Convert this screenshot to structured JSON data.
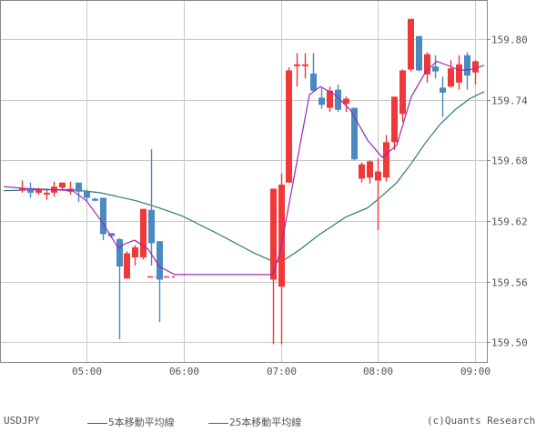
{
  "chart_data": {
    "type": "candlestick",
    "symbol": "USDJPY",
    "interval_minutes": 5,
    "title": "",
    "xlabel": "",
    "ylabel": "",
    "ylim": [
      159.46,
      159.84
    ],
    "y_ticks": [
      "159.80",
      "159.74",
      "159.68",
      "159.62",
      "159.56",
      "159.50"
    ],
    "x_ticks": [
      "05:00",
      "06:00",
      "07:00",
      "08:00",
      "09:00"
    ],
    "grid": true,
    "legend_position": "bottom",
    "colors": {
      "up": "#f03838",
      "down": "#4a8ac0",
      "ma5": "#9a28b8",
      "ma25": "#2a7a78",
      "grid": "#c8c8c8",
      "axis": "#888888",
      "text": "#555555"
    },
    "candles": [
      {
        "t": "04:20",
        "o": 159.65,
        "h": 159.66,
        "l": 159.648,
        "c": 159.652
      },
      {
        "t": "04:25",
        "o": 159.652,
        "h": 159.658,
        "l": 159.643,
        "c": 159.648
      },
      {
        "t": "04:30",
        "o": 159.648,
        "h": 159.653,
        "l": 159.646,
        "c": 159.651
      },
      {
        "t": "04:35",
        "o": 159.647,
        "h": 159.652,
        "l": 159.641,
        "c": 159.648
      },
      {
        "t": "04:40",
        "o": 159.648,
        "h": 159.659,
        "l": 159.644,
        "c": 159.654
      },
      {
        "t": "04:45",
        "o": 159.653,
        "h": 159.658,
        "l": 159.65,
        "c": 159.658
      },
      {
        "t": "04:50",
        "o": 159.649,
        "h": 159.659,
        "l": 159.646,
        "c": 159.652
      },
      {
        "t": "04:55",
        "o": 159.658,
        "h": 159.658,
        "l": 159.639,
        "c": 159.649
      },
      {
        "t": "05:00",
        "o": 159.649,
        "h": 159.651,
        "l": 159.64,
        "c": 159.643
      },
      {
        "t": "05:05",
        "o": 159.642,
        "h": 159.643,
        "l": 159.64,
        "c": 159.64
      },
      {
        "t": "05:10",
        "o": 159.643,
        "h": 159.643,
        "l": 159.601,
        "c": 159.607
      },
      {
        "t": "05:15",
        "o": 159.608,
        "h": 159.608,
        "l": 159.604,
        "c": 159.605
      },
      {
        "t": "05:20",
        "o": 159.602,
        "h": 159.603,
        "l": 159.503,
        "c": 159.575
      },
      {
        "t": "05:25",
        "o": 159.563,
        "h": 159.59,
        "l": 159.563,
        "c": 159.588
      },
      {
        "t": "05:30",
        "o": 159.584,
        "h": 159.596,
        "l": 159.576,
        "c": 159.594
      },
      {
        "t": "05:35",
        "o": 159.584,
        "h": 159.632,
        "l": 159.582,
        "c": 159.632
      },
      {
        "t": "05:40",
        "o": 159.631,
        "h": 159.691,
        "l": 159.576,
        "c": 159.598
      },
      {
        "t": "05:45",
        "o": 159.6,
        "h": 159.6,
        "l": 159.52,
        "c": 159.562
      },
      {
        "t": "06:55",
        "o": 159.562,
        "h": 159.6,
        "l": 159.498,
        "c": 159.652
      },
      {
        "t": "07:00",
        "o": 159.555,
        "h": 159.667,
        "l": 159.498,
        "c": 159.656
      },
      {
        "t": "07:05",
        "o": 159.658,
        "h": 159.772,
        "l": 159.658,
        "c": 159.769
      },
      {
        "t": "07:10",
        "o": 159.775,
        "h": 159.786,
        "l": 159.753,
        "c": 159.775
      },
      {
        "t": "07:15",
        "o": 159.775,
        "h": 159.786,
        "l": 159.761,
        "c": 159.775
      },
      {
        "t": "07:20",
        "o": 159.766,
        "h": 159.786,
        "l": 159.748,
        "c": 159.749
      },
      {
        "t": "07:25",
        "o": 159.742,
        "h": 159.752,
        "l": 159.731,
        "c": 159.735
      },
      {
        "t": "07:30",
        "o": 159.732,
        "h": 159.753,
        "l": 159.728,
        "c": 159.749
      },
      {
        "t": "07:35",
        "o": 159.75,
        "h": 159.755,
        "l": 159.728,
        "c": 159.73
      },
      {
        "t": "07:40",
        "o": 159.736,
        "h": 159.743,
        "l": 159.728,
        "c": 159.741
      },
      {
        "t": "07:45",
        "o": 159.732,
        "h": 159.732,
        "l": 159.68,
        "c": 159.681
      },
      {
        "t": "07:50",
        "o": 159.662,
        "h": 159.678,
        "l": 159.658,
        "c": 159.676
      },
      {
        "t": "07:55",
        "o": 159.663,
        "h": 159.68,
        "l": 159.657,
        "c": 159.679
      },
      {
        "t": "08:00",
        "o": 159.66,
        "h": 159.682,
        "l": 159.611,
        "c": 159.669
      },
      {
        "t": "08:05",
        "o": 159.663,
        "h": 159.705,
        "l": 159.659,
        "c": 159.698
      },
      {
        "t": "08:10",
        "o": 159.698,
        "h": 159.743,
        "l": 159.69,
        "c": 159.743
      },
      {
        "t": "08:15",
        "o": 159.726,
        "h": 159.77,
        "l": 159.718,
        "c": 159.769
      },
      {
        "t": "08:20",
        "o": 159.77,
        "h": 159.82,
        "l": 159.768,
        "c": 159.82
      },
      {
        "t": "08:25",
        "o": 159.803,
        "h": 159.803,
        "l": 159.768,
        "c": 159.769
      },
      {
        "t": "08:30",
        "o": 159.765,
        "h": 159.787,
        "l": 159.757,
        "c": 159.785
      },
      {
        "t": "08:35",
        "o": 159.773,
        "h": 159.784,
        "l": 159.761,
        "c": 159.768
      },
      {
        "t": "08:40",
        "o": 159.752,
        "h": 159.763,
        "l": 159.723,
        "c": 159.747
      },
      {
        "t": "08:45",
        "o": 159.753,
        "h": 159.779,
        "l": 159.752,
        "c": 159.771
      },
      {
        "t": "08:50",
        "o": 159.757,
        "h": 159.784,
        "l": 159.75,
        "c": 159.775
      },
      {
        "t": "08:55",
        "o": 159.784,
        "h": 159.787,
        "l": 159.75,
        "c": 159.764
      },
      {
        "t": "09:00",
        "o": 159.767,
        "h": 159.779,
        "l": 159.755,
        "c": 159.778
      }
    ],
    "ma5": [
      [
        4,
        159.654
      ],
      [
        30,
        159.652
      ],
      [
        60,
        159.651
      ],
      [
        80,
        159.65
      ],
      [
        95,
        159.64
      ],
      [
        113,
        159.618
      ],
      [
        130,
        159.593
      ],
      [
        136,
        159.597
      ],
      [
        148,
        159.601
      ],
      [
        163,
        159.592
      ],
      [
        175,
        159.575
      ],
      [
        192,
        159.567
      ],
      [
        300,
        159.567
      ],
      [
        308,
        159.59
      ],
      [
        340,
        159.745
      ],
      [
        352,
        159.753
      ],
      [
        368,
        159.745
      ],
      [
        385,
        159.73
      ],
      [
        404,
        159.7
      ],
      [
        420,
        159.683
      ],
      [
        436,
        159.695
      ],
      [
        452,
        159.743
      ],
      [
        468,
        159.768
      ],
      [
        480,
        159.778
      ],
      [
        495,
        159.773
      ],
      [
        505,
        159.769
      ],
      [
        518,
        159.77
      ],
      [
        532,
        159.774
      ]
    ],
    "ma25": [
      [
        4,
        159.65
      ],
      [
        40,
        159.651
      ],
      [
        80,
        159.651
      ],
      [
        110,
        159.648
      ],
      [
        150,
        159.64
      ],
      [
        175,
        159.633
      ],
      [
        200,
        159.625
      ],
      [
        240,
        159.607
      ],
      [
        280,
        159.588
      ],
      [
        300,
        159.58
      ],
      [
        310,
        159.58
      ],
      [
        330,
        159.592
      ],
      [
        350,
        159.606
      ],
      [
        380,
        159.624
      ],
      [
        404,
        159.633
      ],
      [
        420,
        159.645
      ],
      [
        436,
        159.658
      ],
      [
        452,
        159.677
      ],
      [
        468,
        159.698
      ],
      [
        484,
        159.716
      ],
      [
        500,
        159.73
      ],
      [
        516,
        159.741
      ],
      [
        532,
        159.748
      ]
    ],
    "legend": [
      {
        "label": "5本移動平均線",
        "color": "#9a28b8"
      },
      {
        "label": "25本移動平均線",
        "color": "#2a7a78"
      }
    ]
  },
  "footer": {
    "symbol": "USDJPY",
    "ma5_label": "5本移動平均線",
    "ma25_label": "25本移動平均線",
    "copyright": "(c)Quants Research"
  }
}
